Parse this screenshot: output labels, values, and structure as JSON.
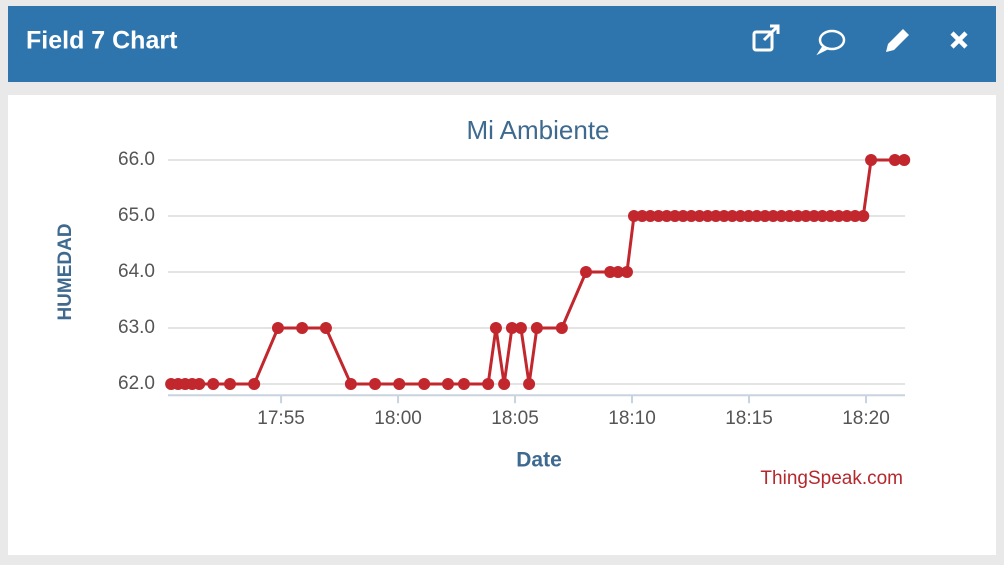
{
  "header": {
    "title": "Field 7 Chart"
  },
  "chart_data": {
    "type": "line",
    "title": "Mi Ambiente",
    "y_label": "HUMEDAD",
    "x_label": "Date",
    "credit": "ThingSpeak.com",
    "x": [
      "17:50:18",
      "17:50:36",
      "17:50:54",
      "17:51:12",
      "17:51:30",
      "17:52:06",
      "17:52:49",
      "17:53:51",
      "17:54:52",
      "17:55:54",
      "17:56:55",
      "17:57:59",
      "17:59:01",
      "18:00:03",
      "18:01:07",
      "18:02:08",
      "18:02:49",
      "18:03:51",
      "18:04:11",
      "18:04:32",
      "18:04:52",
      "18:05:15",
      "18:05:36",
      "18:05:56",
      "18:07:00",
      "18:08:02",
      "18:09:04",
      "18:09:24",
      "18:09:47",
      "18:10:05",
      "18:10:26",
      "18:10:47",
      "18:11:08",
      "18:11:29",
      "18:11:50",
      "18:12:11",
      "18:12:32",
      "18:12:53",
      "18:13:14",
      "18:13:35",
      "18:13:56",
      "18:14:17",
      "18:14:38",
      "18:14:59",
      "18:15:20",
      "18:15:41",
      "18:16:02",
      "18:16:23",
      "18:16:44",
      "18:17:05",
      "18:17:26",
      "18:17:47",
      "18:18:08",
      "18:18:29",
      "18:18:50",
      "18:19:11",
      "18:19:32",
      "18:19:53",
      "18:20:13",
      "18:21:14",
      "18:21:38"
    ],
    "series": [
      {
        "name": "HUMEDAD",
        "color": "#c1272d",
        "values": [
          62,
          62,
          62,
          62,
          62,
          62,
          62,
          62,
          63,
          63,
          63,
          62,
          62,
          62,
          62,
          62,
          62,
          62,
          63,
          62,
          63,
          63,
          62,
          63,
          63,
          64,
          64,
          64,
          64,
          65,
          65,
          65,
          65,
          65,
          65,
          65,
          65,
          65,
          65,
          65,
          65,
          65,
          65,
          65,
          65,
          65,
          65,
          65,
          65,
          65,
          65,
          65,
          65,
          65,
          65,
          65,
          65,
          65,
          66,
          66,
          66
        ]
      }
    ],
    "xlim": [
      "17:50:10",
      "18:21:40"
    ],
    "xticks": [
      "17:55",
      "18:00",
      "18:05",
      "18:10",
      "18:15",
      "18:20"
    ],
    "ylim": [
      61.8,
      66.1
    ],
    "yticks": [
      {
        "value": 62,
        "label": "62.0"
      },
      {
        "value": 63,
        "label": "63.0"
      },
      {
        "value": 64,
        "label": "64.0"
      },
      {
        "value": 65,
        "label": "65.0"
      },
      {
        "value": 66,
        "label": "66.0"
      }
    ],
    "grid": true
  }
}
